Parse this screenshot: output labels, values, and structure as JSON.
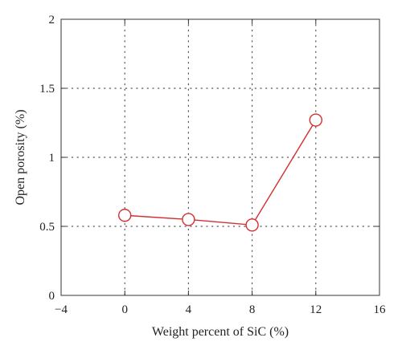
{
  "chart_data": {
    "type": "line",
    "title": "",
    "xlabel": "Weight percent of SiC (%)",
    "ylabel": "Open porosity (%)",
    "xlim": [
      -4,
      16
    ],
    "ylim": [
      0,
      2
    ],
    "x_ticks": [
      -4,
      0,
      4,
      8,
      12,
      16
    ],
    "x_tick_labels": [
      "−4",
      "0",
      "4",
      "8",
      "12",
      "16"
    ],
    "y_ticks": [
      0,
      0.5,
      1,
      1.5,
      2
    ],
    "y_tick_labels": [
      "0",
      "0.5",
      "1",
      "1.5",
      "2"
    ],
    "grid": true,
    "grid_style": "dotted",
    "legend": "none",
    "series": [
      {
        "x": [
          0,
          4,
          8,
          12
        ],
        "y": [
          0.58,
          0.55,
          0.51,
          1.27
        ],
        "color": "#d32f2f",
        "marker": "open-circle"
      }
    ]
  }
}
